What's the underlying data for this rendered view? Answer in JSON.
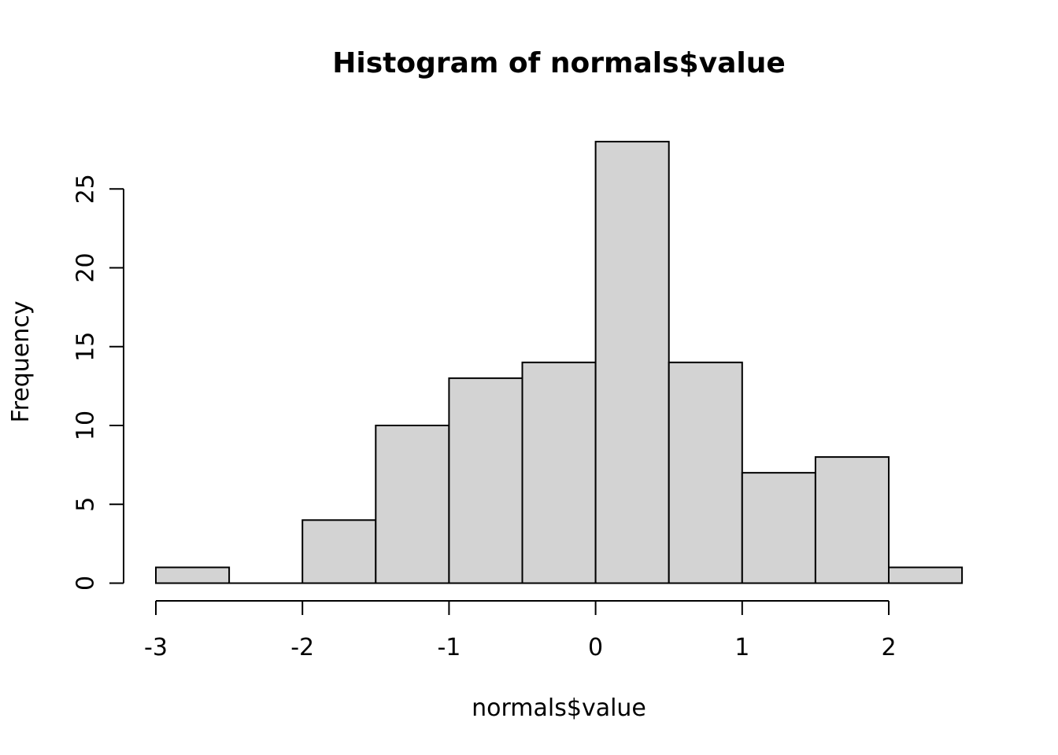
{
  "chart_data": {
    "type": "bar",
    "title": "Histogram of normals$value",
    "xlabel": "normals$value",
    "ylabel": "Frequency",
    "bins": [
      {
        "x0": -3.0,
        "x1": -2.5,
        "count": 1
      },
      {
        "x0": -2.5,
        "x1": -2.0,
        "count": 0
      },
      {
        "x0": -2.0,
        "x1": -1.5,
        "count": 4
      },
      {
        "x0": -1.5,
        "x1": -1.0,
        "count": 10
      },
      {
        "x0": -1.0,
        "x1": -0.5,
        "count": 13
      },
      {
        "x0": -0.5,
        "x1": 0.0,
        "count": 14
      },
      {
        "x0": 0.0,
        "x1": 0.5,
        "count": 28
      },
      {
        "x0": 0.5,
        "x1": 1.0,
        "count": 14
      },
      {
        "x0": 1.0,
        "x1": 1.5,
        "count": 7
      },
      {
        "x0": 1.5,
        "x1": 2.0,
        "count": 8
      },
      {
        "x0": 2.0,
        "x1": 2.5,
        "count": 1
      }
    ],
    "xlim": [
      -3.0,
      2.5
    ],
    "ylim": [
      0,
      28
    ],
    "x_ticks": [
      -3,
      -2,
      -1,
      0,
      1,
      2
    ],
    "y_ticks": [
      0,
      5,
      10,
      15,
      20,
      25
    ],
    "grid": false,
    "bar_fill": "#d3d3d3",
    "bar_stroke": "#000000"
  }
}
